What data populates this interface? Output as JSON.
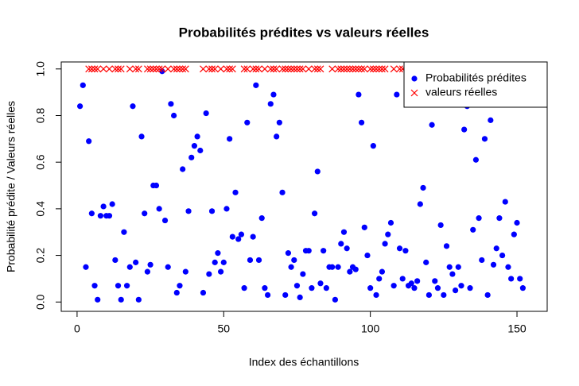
{
  "chart_data": {
    "type": "scatter",
    "title": "Probabilités prédites vs valeurs réelles",
    "x_label": "Index des échantillons",
    "y_label": "Probabilité prédite / Valeurs réelles",
    "xlim": [
      -5.4,
      160.3
    ],
    "ylim": [
      -0.04,
      1.03
    ],
    "xticks": [
      0,
      50,
      100,
      150
    ],
    "yticks": [
      {
        "value": 0,
        "label": "0.0"
      },
      0.2,
      0.4,
      0.6,
      0.8,
      {
        "value": 1,
        "label": "1.0"
      }
    ],
    "legend": "topright",
    "series": [
      {
        "name": "Probabilités prédites",
        "color": "#0000ff",
        "marker": "dot",
        "x": [
          1,
          2,
          3,
          4,
          5,
          6,
          7,
          8,
          9,
          10,
          11,
          12,
          13,
          14,
          15,
          16,
          17,
          18,
          19,
          20,
          21,
          22,
          23,
          24,
          25,
          26,
          27,
          28,
          29,
          30,
          31,
          32,
          33,
          34,
          35,
          36,
          37,
          38,
          39,
          40,
          41,
          42,
          43,
          44,
          45,
          46,
          47,
          48,
          49,
          50,
          51,
          52,
          53,
          54,
          55,
          56,
          57,
          58,
          59,
          60,
          61,
          62,
          63,
          64,
          65,
          66,
          67,
          68,
          69,
          70,
          71,
          72,
          73,
          74,
          75,
          76,
          77,
          78,
          79,
          80,
          81,
          82,
          83,
          84,
          85,
          86,
          87,
          88,
          89,
          90,
          91,
          92,
          93,
          94,
          95,
          96,
          97,
          98,
          99,
          100,
          101,
          102,
          103,
          104,
          105,
          106,
          107,
          108,
          109,
          110,
          111,
          112,
          113,
          114,
          115,
          116,
          117,
          118,
          119,
          120,
          121,
          122,
          123,
          124,
          125,
          126,
          127,
          128,
          129,
          130,
          131,
          132,
          133,
          134,
          135,
          136,
          137,
          138,
          139,
          140,
          141,
          142,
          143,
          144,
          145,
          146,
          147,
          148,
          149,
          150,
          151,
          152
        ],
        "values": [
          0.84,
          0.93,
          0.15,
          0.69,
          0.38,
          0.07,
          0.01,
          0.37,
          0.41,
          0.37,
          0.37,
          0.42,
          0.18,
          0.07,
          0.01,
          0.3,
          0.07,
          0.15,
          0.84,
          0.17,
          0.01,
          0.71,
          0.38,
          0.13,
          0.16,
          0.5,
          0.5,
          0.4,
          0.99,
          0.35,
          0.15,
          0.85,
          0.8,
          0.04,
          0.07,
          0.57,
          0.13,
          0.39,
          0.62,
          0.67,
          0.71,
          0.65,
          0.04,
          0.81,
          0.12,
          0.39,
          0.17,
          0.21,
          0.13,
          0.17,
          0.4,
          0.7,
          0.28,
          0.47,
          0.27,
          0.29,
          0.06,
          0.77,
          0.18,
          0.28,
          0.93,
          0.18,
          0.36,
          0.06,
          0.03,
          0.85,
          0.89,
          0.71,
          0.77,
          0.47,
          0.03,
          0.21,
          0.15,
          0.18,
          0.07,
          0.02,
          0.12,
          0.22,
          0.22,
          0.06,
          0.38,
          0.56,
          0.08,
          0.22,
          0.06,
          0.15,
          0.15,
          0.01,
          0.15,
          0.25,
          0.3,
          0.23,
          0.13,
          0.15,
          0.14,
          0.89,
          0.77,
          0.32,
          0.2,
          0.06,
          0.67,
          0.03,
          0.1,
          0.13,
          0.25,
          0.29,
          0.34,
          0.07,
          0.89,
          0.23,
          0.1,
          0.22,
          0.07,
          0.08,
          0.06,
          0.09,
          0.42,
          0.49,
          0.17,
          0.03,
          0.76,
          0.09,
          0.06,
          0.33,
          0.03,
          0.24,
          0.15,
          0.12,
          0.05,
          0.15,
          0.07,
          0.74,
          0.84,
          0.06,
          0.31,
          0.61,
          0.36,
          0.18,
          0.7,
          0.03,
          0.78,
          0.16,
          0.23,
          0.36,
          0.2,
          0.43,
          0.15,
          0.1,
          0.29,
          0.34,
          0.1,
          0.06
        ]
      },
      {
        "name": "valeurs réelles",
        "color": "#ff0000",
        "marker": "cross",
        "x": [
          4,
          5,
          6,
          7,
          9,
          11,
          13,
          14,
          15,
          18,
          20,
          21,
          24,
          25,
          26,
          27,
          28,
          29,
          31,
          33,
          34,
          35,
          36,
          37,
          43,
          45,
          46,
          47,
          49,
          51,
          52,
          53,
          57,
          58,
          60,
          61,
          62,
          64,
          66,
          67,
          68,
          70,
          71,
          72,
          73,
          74,
          75,
          76,
          77,
          79,
          81,
          82,
          83,
          87,
          89,
          90,
          91,
          92,
          93,
          94,
          95,
          96,
          97,
          98,
          100,
          101,
          102,
          103,
          104,
          105,
          108,
          110,
          111
        ],
        "values": [
          1,
          1,
          1,
          1,
          1,
          1,
          1,
          1,
          1,
          1,
          1,
          1,
          1,
          1,
          1,
          1,
          1,
          1,
          1,
          1,
          1,
          1,
          1,
          1,
          1,
          1,
          1,
          1,
          1,
          1,
          1,
          1,
          1,
          1,
          1,
          1,
          1,
          1,
          1,
          1,
          1,
          1,
          1,
          1,
          1,
          1,
          1,
          1,
          1,
          1,
          1,
          1,
          1,
          1,
          1,
          1,
          1,
          1,
          1,
          1,
          1,
          1,
          1,
          1,
          1,
          1,
          1,
          1,
          1,
          1,
          1,
          1,
          1
        ]
      }
    ]
  }
}
